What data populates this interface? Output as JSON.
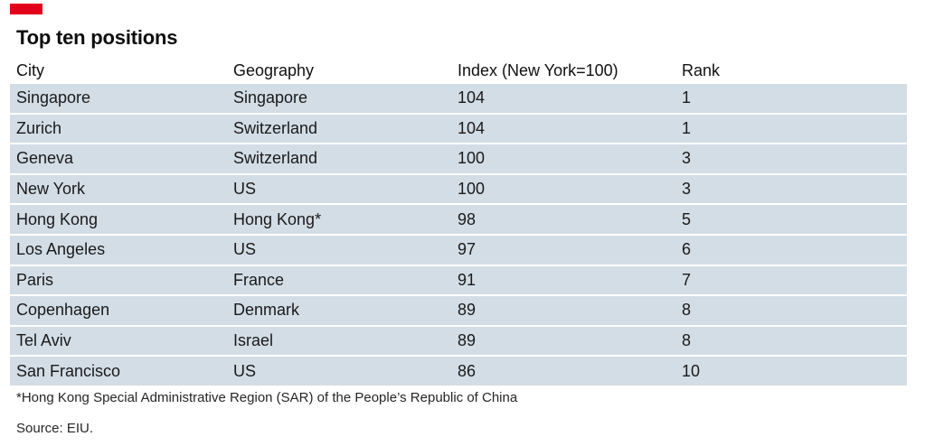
{
  "accent_color": "#e3001b",
  "row_color": "#d3dde6",
  "title": "Top ten positions",
  "chart_data": {
    "type": "table",
    "title": "Top ten positions",
    "columns": [
      "City",
      "Geography",
      "Index (New York=100)",
      "Rank"
    ],
    "rows": [
      [
        "Singapore",
        "Singapore",
        "104",
        "1"
      ],
      [
        "Zurich",
        "Switzerland",
        "104",
        "1"
      ],
      [
        "Geneva",
        "Switzerland",
        "100",
        "3"
      ],
      [
        "New York",
        "US",
        "100",
        "3"
      ],
      [
        "Hong Kong",
        "Hong Kong*",
        "98",
        "5"
      ],
      [
        "Los Angeles",
        "US",
        "97",
        "6"
      ],
      [
        "Paris",
        "France",
        "91",
        "7"
      ],
      [
        "Copenhagen",
        "Denmark",
        "89",
        "8"
      ],
      [
        "Tel Aviv",
        "Israel",
        "89",
        "8"
      ],
      [
        "San Francisco",
        "US",
        "86",
        "10"
      ]
    ]
  },
  "footnote": "*Hong Kong Special Administrative Region (SAR) of the People’s Republic of China",
  "source": "Source: EIU."
}
